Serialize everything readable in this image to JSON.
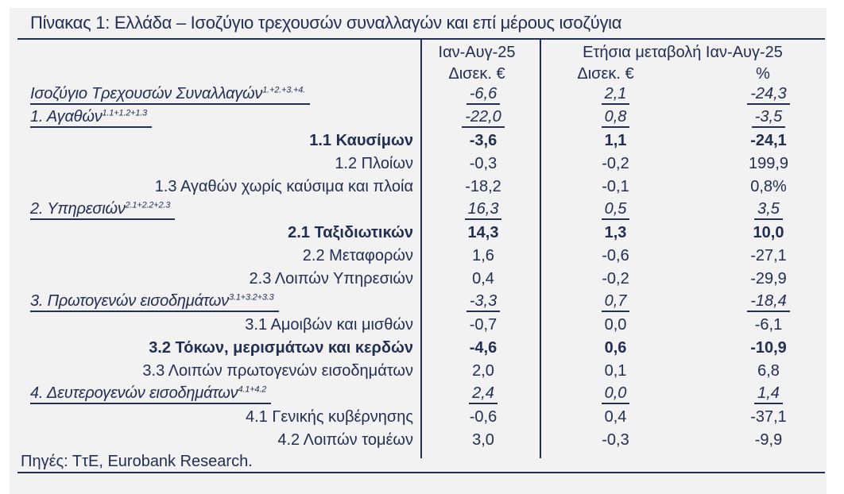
{
  "colors": {
    "text": "#222e52",
    "panel_bg": "#f2f2f2"
  },
  "chart_data": {
    "type": "table",
    "title": "Πίνακας 1: Ελλάδα – Ισοζύγιο τρεχουσών συναλλαγών και επί μέρους ισοζύγια",
    "column_headers": {
      "period": "Ιαν-Αυγ-25",
      "period_unit": "Δισεκ. €",
      "change_group": "Ετήσια μεταβολή Ιαν-Αυγ-25",
      "change_unit_abs": "Δισεκ. €",
      "change_unit_pct": "%"
    },
    "rows": [
      {
        "label": "Ισοζύγιο Τρεχουσών Συναλλαγών",
        "sup": "1.+2.+3.+4.",
        "style": "main",
        "values": [
          "-6,6",
          "2,1",
          "-24,3"
        ]
      },
      {
        "label": "1. Αγαθών",
        "sup": "1.1+1.2+1.3",
        "style": "main",
        "values": [
          "-22,0",
          "0,8",
          "-3,5"
        ]
      },
      {
        "label": "1.1 Καυσίμων",
        "sup": "",
        "style": "bold",
        "values": [
          "-3,6",
          "1,1",
          "-24,1"
        ]
      },
      {
        "label": "1.2 Πλοίων",
        "sup": "",
        "style": "normal",
        "values": [
          "-0,3",
          "-0,2",
          "199,9"
        ]
      },
      {
        "label": "1.3 Αγαθών χωρίς καύσιμα και πλοία",
        "sup": "",
        "style": "normal",
        "values": [
          "-18,2",
          "-0,1",
          "0,8%"
        ]
      },
      {
        "label": "2. Υπηρεσιών",
        "sup": "2.1+2.2+2.3",
        "style": "main",
        "values": [
          "16,3",
          "0,5",
          "3,5"
        ]
      },
      {
        "label": "2.1 Ταξιδιωτικών",
        "sup": "",
        "style": "bold",
        "values": [
          "14,3",
          "1,3",
          "10,0"
        ]
      },
      {
        "label": "2.2 Μεταφορών",
        "sup": "",
        "style": "normal",
        "values": [
          "1,6",
          "-0,6",
          "-27,1"
        ]
      },
      {
        "label": "2.3 Λοιπών Υπηρεσιών",
        "sup": "",
        "style": "normal",
        "values": [
          "0,4",
          "-0,2",
          "-29,9"
        ]
      },
      {
        "label": "3. Πρωτογενών εισοδημάτων",
        "sup": "3.1+3.2+3.3",
        "style": "main",
        "values": [
          "-3,3",
          "0,7",
          "-18,4"
        ]
      },
      {
        "label": "3.1 Αμοιβών και μισθών",
        "sup": "",
        "style": "normal",
        "values": [
          "-0,7",
          "0,0",
          "-6,1"
        ]
      },
      {
        "label": "3.2 Τόκων, μερισμάτων και κερδών",
        "sup": "",
        "style": "bold",
        "values": [
          "-4,6",
          "0,6",
          "-10,9"
        ]
      },
      {
        "label": "3.3 Λοιπών πρωτογενών εισοδημάτων",
        "sup": "",
        "style": "normal",
        "values": [
          "2,0",
          "0,1",
          "6,8"
        ]
      },
      {
        "label": "4. Δευτερογενών εισοδημάτων",
        "sup": "4.1+4.2",
        "style": "main",
        "values": [
          "2,4",
          "0,0",
          "1,4"
        ]
      },
      {
        "label": "4.1 Γενικής κυβέρνησης",
        "sup": "",
        "style": "normal",
        "values": [
          "-0,6",
          "0,4",
          "-37,1"
        ]
      },
      {
        "label": "4.2 Λοιπών τομέων",
        "sup": "",
        "style": "normal",
        "values": [
          "3,0",
          "-0,3",
          "-9,9"
        ]
      }
    ],
    "source": "Πηγές: ΤτΕ, Eurobank Research."
  }
}
